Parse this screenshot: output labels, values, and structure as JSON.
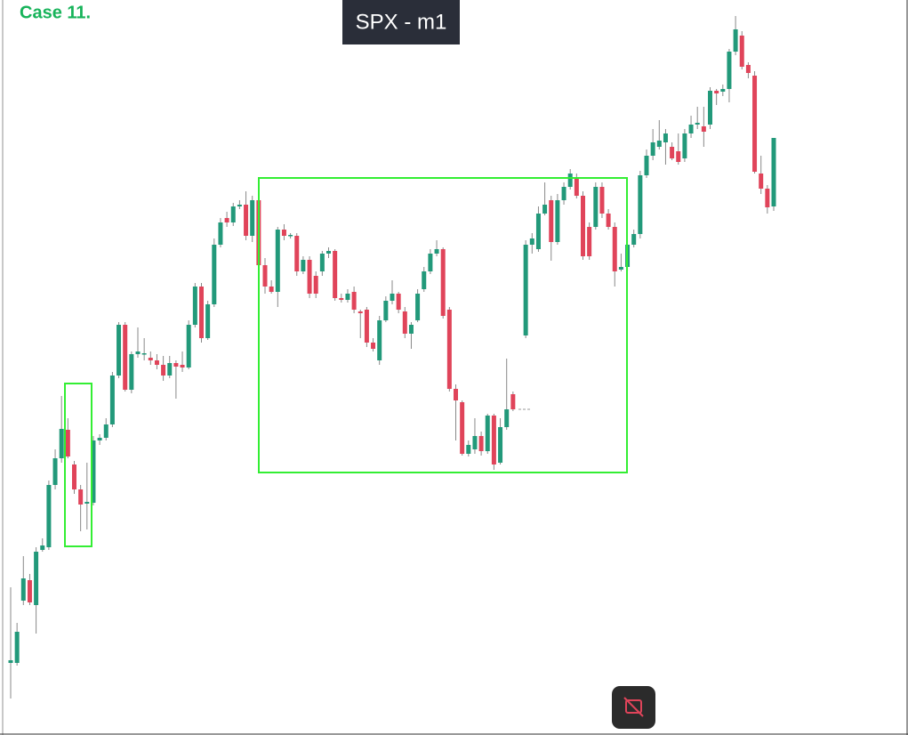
{
  "chart_data": {
    "type": "candlestick",
    "title": "Case 11.",
    "annotations": [
      "SPX - m1"
    ],
    "up_color": "#22997a",
    "down_color": "#e0445a",
    "ylim": [
      174,
      1000
    ],
    "open": [
      255,
      255,
      325,
      348,
      320,
      382,
      385,
      455,
      485,
      517,
      478,
      450,
      434,
      435,
      505,
      508,
      523,
      578,
      635,
      562,
      602,
      602,
      598,
      595,
      590,
      578,
      592,
      590,
      587,
      635,
      678,
      620,
      658,
      725,
      755,
      750,
      768,
      770,
      735,
      775,
      702,
      678,
      672,
      742,
      735,
      735,
      695,
      708,
      690,
      695,
      715,
      718,
      665,
      663,
      672,
      650,
      652,
      615,
      595,
      640,
      662,
      670,
      650,
      625,
      640,
      675,
      695,
      715,
      720,
      652,
      563,
      548,
      490,
      495,
      510,
      493,
      533,
      480,
      520,
      557,
      null,
      623,
      725,
      720,
      760,
      775,
      728,
      775,
      790,
      800,
      780,
      745,
      745,
      790,
      760,
      745,
      697,
      700,
      725,
      737,
      803,
      825,
      835,
      840,
      835,
      830,
      822,
      850,
      860,
      858,
      860,
      898,
      897,
      900,
      942,
      960,
      927,
      915,
      805,
      788,
      768
    ],
    "high": [
      340,
      300,
      375,
      355,
      385,
      395,
      460,
      495,
      555,
      530,
      482,
      455,
      480,
      510,
      512,
      530,
      582,
      638,
      638,
      605,
      632,
      620,
      605,
      602,
      600,
      600,
      595,
      605,
      640,
      682,
      682,
      662,
      732,
      755,
      762,
      772,
      775,
      785,
      780,
      778,
      710,
      685,
      745,
      748,
      738,
      738,
      712,
      712,
      695,
      718,
      722,
      720,
      670,
      675,
      678,
      652,
      655,
      620,
      645,
      667,
      685,
      672,
      655,
      638,
      675,
      700,
      720,
      730,
      722,
      655,
      568,
      550,
      505,
      530,
      515,
      535,
      535,
      530,
      597,
      560,
      null,
      730,
      738,
      768,
      795,
      780,
      782,
      795,
      810,
      805,
      785,
      750,
      795,
      795,
      765,
      750,
      715,
      730,
      742,
      808,
      832,
      855,
      865,
      855,
      840,
      850,
      855,
      870,
      880,
      880,
      902,
      900,
      905,
      945,
      982,
      965,
      930,
      920,
      825,
      792,
      845
    ],
    "low": [
      215,
      252,
      320,
      320,
      288,
      380,
      382,
      450,
      480,
      485,
      445,
      403,
      405,
      432,
      500,
      505,
      520,
      575,
      560,
      558,
      598,
      595,
      590,
      585,
      572,
      575,
      552,
      582,
      585,
      632,
      615,
      618,
      655,
      722,
      745,
      746,
      765,
      730,
      728,
      698,
      670,
      670,
      655,
      730,
      732,
      690,
      692,
      665,
      665,
      690,
      710,
      662,
      660,
      660,
      648,
      620,
      610,
      605,
      590,
      638,
      658,
      648,
      620,
      608,
      638,
      672,
      692,
      712,
      642,
      560,
      505,
      488,
      487,
      490,
      488,
      490,
      472,
      478,
      517,
      538,
      null,
      620,
      715,
      717,
      758,
      707,
      725,
      770,
      787,
      777,
      708,
      708,
      742,
      755,
      742,
      678,
      695,
      695,
      722,
      732,
      800,
      820,
      832,
      815,
      820,
      815,
      818,
      845,
      855,
      835,
      855,
      882,
      892,
      885,
      938,
      922,
      912,
      805,
      782,
      760,
      763
    ],
    "close": [
      258,
      290,
      350,
      323,
      380,
      387,
      455,
      485,
      518,
      487,
      450,
      433,
      436,
      505,
      508,
      523,
      578,
      635,
      562,
      602,
      605,
      603,
      595,
      590,
      578,
      592,
      588,
      587,
      635,
      678,
      620,
      658,
      725,
      750,
      750,
      768,
      770,
      735,
      775,
      702,
      678,
      672,
      742,
      735,
      736,
      695,
      708,
      670,
      670,
      715,
      718,
      665,
      663,
      670,
      652,
      648,
      615,
      608,
      640,
      662,
      670,
      652,
      625,
      635,
      670,
      695,
      715,
      720,
      645,
      563,
      550,
      490,
      500,
      510,
      493,
      533,
      478,
      520,
      540,
      540,
      null,
      725,
      732,
      760,
      770,
      728,
      775,
      790,
      805,
      780,
      712,
      712,
      790,
      760,
      745,
      695,
      700,
      725,
      737,
      803,
      825,
      840,
      842,
      850,
      822,
      818,
      850,
      860,
      862,
      852,
      898,
      895,
      900,
      942,
      967,
      925,
      918,
      807,
      788,
      767,
      845
    ]
  }
}
